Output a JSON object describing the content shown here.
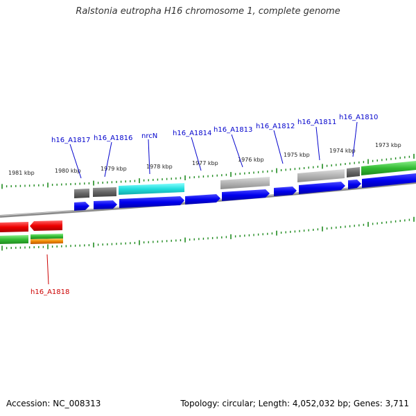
{
  "title": "Ralstonia eutropha H16 chromosome 1, complete genome",
  "footer": {
    "accession": "Accession: NC_008313",
    "topology": "Topology: circular; Length: 4,052,032 bp; Genes: 3,711"
  },
  "colors": {
    "tick": "#1e8a1e",
    "backbone": "#8a8a8a",
    "cds_blue": "#0000ee",
    "cds_cyan": "#22dddd",
    "gene_darkgray": "#666666",
    "gene_lightgray": "#b4b4b4",
    "gene_green": "#33bb33",
    "gene_red": "#ee0000",
    "gene_orange": "#ee8800",
    "label_blue": "#0000cc",
    "label_red": "#cc0000"
  },
  "kbp_labels": [
    "1981 kbp",
    "1980 kbp",
    "1979 kbp",
    "1978 kbp",
    "1977 kbp",
    "1976 kbp",
    "1975 kbp",
    "1974 kbp",
    "1973 kbp"
  ],
  "gene_labels": [
    {
      "name": "h16_A1817",
      "color": "blue"
    },
    {
      "name": "h16_A1816",
      "color": "blue"
    },
    {
      "name": "nrcN",
      "color": "blue"
    },
    {
      "name": "h16_A1814",
      "color": "blue"
    },
    {
      "name": "h16_A1813",
      "color": "blue"
    },
    {
      "name": "h16_A1812",
      "color": "blue"
    },
    {
      "name": "h16_A1811",
      "color": "blue"
    },
    {
      "name": "h16_A1810",
      "color": "blue"
    },
    {
      "name": "h16_A1818",
      "color": "red"
    }
  ]
}
